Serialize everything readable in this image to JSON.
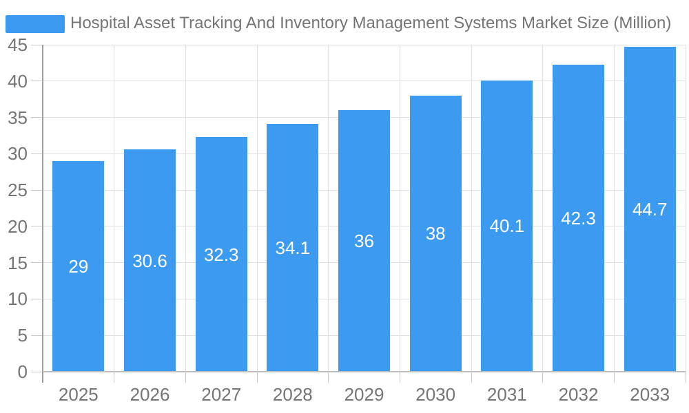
{
  "chart_data": {
    "type": "bar",
    "title": "Hospital Asset Tracking And Inventory Management Systems Market Size (Million)",
    "categories": [
      "2025",
      "2026",
      "2027",
      "2028",
      "2029",
      "2030",
      "2031",
      "2032",
      "2033"
    ],
    "values": [
      29,
      30.6,
      32.3,
      34.1,
      36,
      38,
      40.1,
      42.3,
      44.7
    ],
    "bar_labels": [
      "29",
      "30.6",
      "32.3",
      "34.1",
      "36",
      "38",
      "40.1",
      "42.3",
      "44.7"
    ],
    "xlabel": "",
    "ylabel": "",
    "ylim": [
      0,
      45
    ],
    "yticks": [
      0,
      5,
      10,
      15,
      20,
      25,
      30,
      35,
      40,
      45
    ],
    "grid": true,
    "legend_position": "top-left",
    "colors": {
      "bar": "#3c9bf0",
      "grid_line": "#e0e0e0",
      "y_axis_line": "#9e9e9e",
      "x_axis_line": "#bdbdbd",
      "tick_line": "#c9c9c9",
      "text": "#757575",
      "bar_label_text": "#ffffff",
      "background": "#ffffff"
    }
  }
}
